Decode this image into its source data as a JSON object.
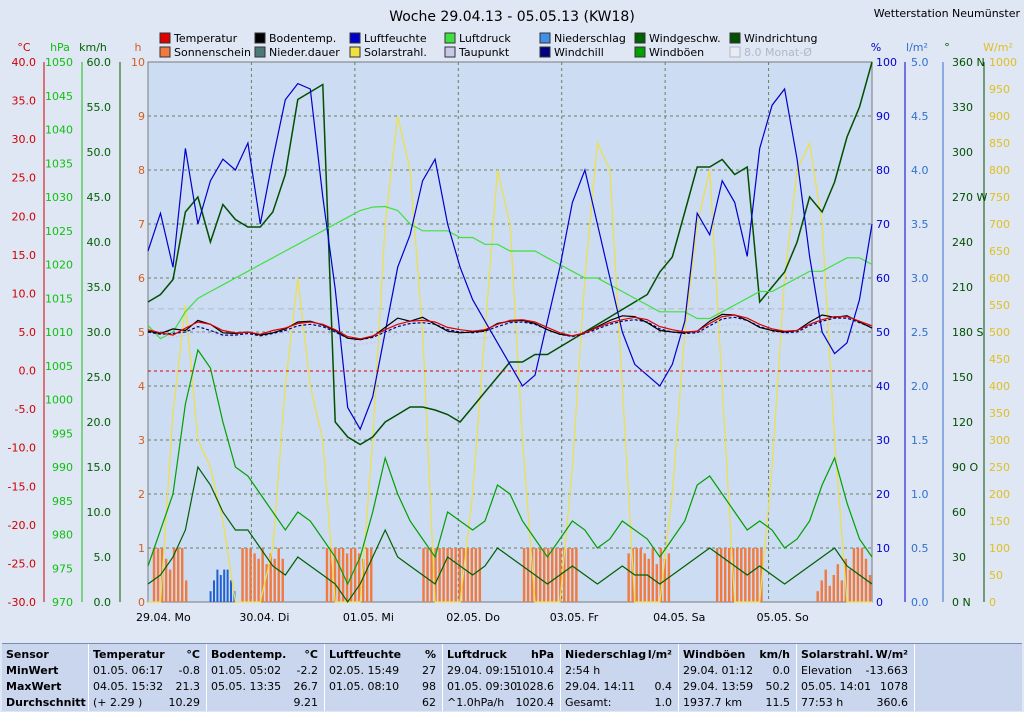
{
  "title": "Woche 29.04.13 - 05.05.13 (KW18)",
  "station": "Wetterstation Neumünster",
  "axis_units": {
    "temp": "°C",
    "hpa": "hPa",
    "kmh": "km/h",
    "h": "h",
    "pct": "%",
    "lm2": "l/m²",
    "deg": "°",
    "wm2": "W/m²"
  },
  "legend": [
    {
      "label": "Temperatur",
      "color": "#e00000"
    },
    {
      "label": "Sonnenschein",
      "color": "#f07a40"
    },
    {
      "label": "Bodentemp.",
      "color": "#000000"
    },
    {
      "label": "Nieder.dauer",
      "color": "#4a7a78"
    },
    {
      "label": "Luftfeuchte",
      "color": "#0000cc"
    },
    {
      "label": "Solarstrahl.",
      "color": "#f0e040"
    },
    {
      "label": "Luftdruck",
      "color": "#40e040"
    },
    {
      "label": "Taupunkt",
      "color": "#c8c8e8"
    },
    {
      "label": "Niederschlag",
      "color": "#4090e8"
    },
    {
      "label": "Windchill",
      "color": "#000080"
    },
    {
      "label": "Windgeschw.",
      "color": "#006000"
    },
    {
      "label": "Windböen",
      "color": "#00a000"
    },
    {
      "label": "Windrichtung",
      "color": "#005000"
    },
    {
      "label": "8.0 Monat-Ø",
      "color": "#b0b8c8"
    }
  ],
  "chart_data": {
    "type": "line",
    "x_ticks": [
      "29.04. Mo",
      "30.04. Di",
      "01.05. Mi",
      "02.05. Do",
      "03.05. Fr",
      "04.05. Sa",
      "05.05. So"
    ],
    "axes": {
      "temp_c": [
        -30,
        40
      ],
      "pressure_hpa": [
        970,
        1050
      ],
      "wind_kmh": [
        0,
        60
      ],
      "sunshine_h": [
        0,
        10
      ],
      "humidity_pct": [
        0,
        100
      ],
      "precip_lm2": [
        0,
        5
      ],
      "wind_dir_deg": [
        0,
        360
      ],
      "solar_wm2": [
        0,
        1000
      ]
    },
    "tick_labels": {
      "temp": [
        "40.0",
        "35.0",
        "30.0",
        "25.0",
        "20.0",
        "15.0",
        "10.0",
        "5.0",
        "0.0",
        "-5.0",
        "-10.0",
        "-15.0",
        "-20.0",
        "-25.0",
        "-30.0"
      ],
      "hpa": [
        "1050",
        "1045",
        "1040",
        "1035",
        "1030",
        "1025",
        "1020",
        "1015",
        "1010",
        "1005",
        "1000",
        "995",
        "990",
        "985",
        "980",
        "975",
        "970"
      ],
      "kmh": [
        "60.0",
        "55.0",
        "50.0",
        "45.0",
        "40.0",
        "35.0",
        "30.0",
        "25.0",
        "20.0",
        "15.0",
        "10.0",
        "5.0",
        "0.0"
      ],
      "h": [
        "10",
        "9",
        "8",
        "7",
        "6",
        "5",
        "4",
        "3",
        "2",
        "1",
        "0"
      ],
      "pct": [
        "100",
        "90",
        "80",
        "70",
        "60",
        "50",
        "40",
        "30",
        "20",
        "10",
        "0"
      ],
      "lm2": [
        "5.0",
        "4.5",
        "4.0",
        "3.5",
        "3.0",
        "2.5",
        "2.0",
        "1.5",
        "1.0",
        "0.5",
        "0.0"
      ],
      "deg": [
        "360 N",
        "330",
        "300",
        "270 W",
        "240",
        "210",
        "180 S",
        "150",
        "120",
        "90 O",
        "60",
        "30",
        "0 N"
      ],
      "wm2": [
        "1000",
        "950",
        "900",
        "850",
        "800",
        "750",
        "700",
        "650",
        "600",
        "550",
        "500",
        "450",
        "400",
        "350",
        "300",
        "250",
        "200",
        "150",
        "100",
        "50",
        "0"
      ]
    },
    "series": [
      {
        "name": "Temperatur",
        "color": "#e00000",
        "values": [
          5.3,
          4.9,
          4.6,
          5.5,
          6.3,
          6.0,
          5.2,
          4.9,
          5.0,
          4.7,
          5.2,
          5.5,
          6.1,
          6.3,
          6.0,
          5.3,
          4.4,
          4.1,
          4.5,
          5.3,
          6.0,
          6.4,
          6.5,
          6.3,
          5.6,
          5.3,
          5.1,
          5.3,
          6.0,
          6.5,
          6.6,
          6.3,
          5.6,
          4.9,
          4.5,
          4.9,
          5.6,
          6.2,
          6.6,
          6.9,
          6.6,
          5.7,
          5.3,
          5.0,
          5.1,
          6.1,
          7.0,
          7.2,
          6.8,
          6.0,
          5.4,
          5.1,
          5.2,
          6.0,
          6.6,
          7.0,
          7.0,
          6.4,
          5.8
        ]
      },
      {
        "name": "Bodentemp.",
        "color": "#000000",
        "values": [
          5.1,
          4.8,
          5.4,
          5.2,
          6.5,
          6.0,
          4.9,
          4.8,
          5.0,
          4.6,
          4.9,
          5.4,
          6.3,
          6.4,
          5.9,
          5.2,
          4.2,
          4.0,
          4.4,
          5.6,
          6.8,
          6.4,
          6.9,
          6.0,
          5.1,
          4.9,
          5.0,
          5.2,
          6.1,
          6.4,
          6.5,
          6.1,
          5.3,
          4.7,
          4.5,
          4.9,
          5.7,
          6.5,
          7.1,
          7.0,
          6.2,
          5.2,
          5.0,
          4.9,
          5.1,
          6.4,
          7.3,
          7.2,
          6.5,
          5.6,
          5.2,
          5.0,
          5.2,
          6.3,
          7.2,
          6.9,
          7.1,
          6.3,
          5.5
        ]
      },
      {
        "name": "Windchill",
        "color": "#000080",
        "values": [
          5.0,
          4.7,
          4.8,
          5.0,
          5.7,
          5.2,
          4.6,
          4.6,
          4.8,
          4.5,
          4.8,
          5.2,
          5.8,
          6.0,
          5.7,
          5.0,
          4.2,
          4.0,
          4.3,
          5.0,
          5.7,
          6.1,
          6.2,
          6.0,
          5.3,
          5.0,
          4.9,
          5.1,
          5.7,
          6.2,
          6.3,
          6.0,
          5.3,
          4.7,
          4.4,
          4.8,
          5.4,
          6.0,
          6.4,
          6.6,
          6.3,
          5.4,
          5.0,
          4.8,
          4.9,
          5.8,
          6.7,
          6.9,
          6.5,
          5.7,
          5.2,
          4.9,
          5.0,
          5.8,
          6.4,
          6.8,
          6.8,
          6.2,
          5.6
        ]
      },
      {
        "name": "Luftdruck",
        "color": "#40e040",
        "values": [
          1011,
          1009,
          1010,
          1013,
          1015,
          1016,
          1017,
          1018,
          1019,
          1020,
          1021,
          1022,
          1023,
          1024,
          1025,
          1026,
          1027,
          1028,
          1028.5,
          1028.6,
          1028,
          1026,
          1025,
          1025,
          1025,
          1024,
          1024,
          1023,
          1023,
          1022,
          1022,
          1022,
          1021,
          1020,
          1019,
          1018,
          1018,
          1017,
          1016,
          1015,
          1014,
          1013,
          1013,
          1013,
          1012,
          1012,
          1013,
          1014,
          1015,
          1016,
          1016,
          1017,
          1018,
          1019,
          1019,
          1020,
          1021,
          1021,
          1020
        ]
      },
      {
        "name": "Luftfeuchte",
        "color": "#0000cc",
        "values": [
          65,
          72,
          62,
          84,
          70,
          78,
          82,
          80,
          85,
          70,
          82,
          93,
          96,
          95,
          75,
          58,
          36,
          32,
          38,
          50,
          62,
          68,
          78,
          82,
          70,
          62,
          56,
          52,
          48,
          44,
          40,
          42,
          52,
          62,
          74,
          80,
          70,
          60,
          50,
          44,
          42,
          40,
          44,
          52,
          72,
          68,
          78,
          74,
          64,
          84,
          92,
          95,
          82,
          64,
          50,
          46,
          48,
          56,
          70
        ]
      },
      {
        "name": "Windgeschw.",
        "color": "#006000",
        "values": [
          2,
          3,
          5,
          8,
          15,
          13,
          10,
          8,
          8,
          6,
          4,
          3,
          5,
          4,
          3,
          2,
          0,
          2,
          5,
          8,
          5,
          4,
          3,
          2,
          5,
          4,
          3,
          4,
          6,
          5,
          4,
          3,
          2,
          3,
          4,
          3,
          2,
          3,
          4,
          3,
          3,
          2,
          3,
          4,
          5,
          6,
          5,
          4,
          3,
          4,
          3,
          2,
          3,
          4,
          5,
          6,
          4,
          3,
          2
        ]
      },
      {
        "name": "Windböen",
        "color": "#00a000",
        "values": [
          4,
          8,
          12,
          22,
          28,
          26,
          20,
          15,
          14,
          12,
          10,
          8,
          10,
          9,
          7,
          5,
          2,
          5,
          10,
          16,
          12,
          9,
          7,
          5,
          10,
          9,
          8,
          9,
          13,
          12,
          9,
          7,
          5,
          7,
          9,
          8,
          6,
          7,
          9,
          8,
          7,
          5,
          7,
          9,
          13,
          14,
          12,
          10,
          8,
          9,
          8,
          6,
          7,
          9,
          13,
          16,
          11,
          7,
          5
        ]
      },
      {
        "name": "Windrichtung",
        "color": "#005000",
        "values": [
          200,
          205,
          215,
          260,
          270,
          240,
          265,
          255,
          250,
          250,
          260,
          285,
          335,
          340,
          345,
          120,
          110,
          105,
          110,
          120,
          125,
          130,
          130,
          128,
          125,
          120,
          130,
          140,
          150,
          160,
          160,
          165,
          165,
          170,
          175,
          180,
          185,
          190,
          195,
          200,
          205,
          220,
          230,
          260,
          290,
          290,
          295,
          285,
          290,
          200,
          210,
          220,
          240,
          270,
          260,
          280,
          310,
          330,
          360
        ]
      },
      {
        "name": "Taupunkt",
        "color": "#c8c8e8",
        "values": [
          4.6,
          4.4,
          4.3,
          4.6,
          5.0,
          4.8,
          4.4,
          4.3,
          4.5,
          4.2,
          4.5,
          4.9,
          5.5,
          5.6,
          5.0,
          4.3,
          3.6,
          3.4,
          3.6,
          4.2,
          4.8,
          5.2,
          5.5,
          5.4,
          4.8,
          4.4,
          4.2,
          4.2,
          4.6,
          4.9,
          4.8,
          4.7,
          4.5,
          4.3,
          4.2,
          4.4,
          4.8,
          5.1,
          5.3,
          5.4,
          5.1,
          4.5,
          4.4,
          4.3,
          4.5,
          5.2,
          5.9,
          6.1,
          5.7,
          5.1,
          4.8,
          4.7,
          4.8,
          5.4,
          5.9,
          6.1,
          6.1,
          5.6,
          5.1
        ]
      },
      {
        "name": "Solarstrahl.",
        "color": "#f0e040",
        "values": [
          0,
          0,
          350,
          550,
          300,
          250,
          150,
          0,
          0,
          0,
          100,
          400,
          600,
          400,
          300,
          0,
          0,
          0,
          300,
          700,
          900,
          800,
          500,
          0,
          0,
          0,
          200,
          500,
          800,
          700,
          300,
          0,
          0,
          0,
          250,
          600,
          850,
          800,
          400,
          0,
          0,
          0,
          200,
          500,
          700,
          800,
          400,
          0,
          0,
          0,
          250,
          600,
          800,
          850,
          700,
          300,
          0,
          0,
          0
        ]
      }
    ],
    "sunshine_bars_h": [
      0,
      1,
      1,
      1,
      0.8,
      0.6,
      1,
      1,
      1,
      0.4,
      0,
      0,
      0,
      0,
      0,
      0,
      0,
      0,
      0,
      0,
      0,
      0,
      0,
      1,
      1,
      1,
      0.9,
      0.8,
      1,
      0.7,
      0.9,
      0.8,
      1,
      0.8,
      0,
      0,
      0,
      0,
      0,
      0,
      0,
      0,
      0,
      0,
      1,
      1,
      1,
      1,
      1,
      0.9,
      1,
      1,
      0.9,
      0.8,
      1,
      1,
      0,
      0,
      0,
      0,
      0,
      0,
      0,
      0,
      0,
      0,
      0,
      0,
      1,
      1,
      1,
      1,
      1,
      1,
      1,
      1,
      1,
      1,
      1,
      1,
      1,
      1,
      1,
      0,
      0,
      0,
      0,
      0,
      0,
      0,
      0,
      0,
      0,
      1,
      1,
      1,
      1,
      1,
      1,
      1,
      1,
      1,
      1,
      1,
      1,
      1,
      1,
      0,
      0,
      0,
      0,
      0,
      0,
      0,
      0,
      0,
      0,
      0,
      0,
      0.9,
      1,
      1,
      1,
      0.9,
      0.8,
      1,
      0.7,
      1,
      0.8,
      0.9,
      0,
      0,
      0,
      0,
      0,
      0,
      0,
      0,
      0,
      0,
      0,
      1,
      1,
      1,
      1,
      1,
      1,
      1,
      1,
      1,
      1,
      1,
      1,
      0,
      0,
      0,
      0,
      0,
      0,
      0,
      0,
      0,
      0,
      0,
      0,
      0,
      0.2,
      0.4,
      0.6,
      0.3,
      0.5,
      0.7,
      0.4,
      0.8,
      0.6,
      1,
      1,
      1,
      0.8,
      0.5
    ],
    "precip_bars_lm2": [
      0,
      0,
      0,
      0,
      0.1,
      0.2,
      0.3,
      0.25,
      0.3,
      0.3,
      0.2,
      0.1,
      0
    ]
  },
  "stats": {
    "headers": {
      "sensor": "Sensor",
      "temp": "Temperatur",
      "temp_u": "°C",
      "boden": "Bodentemp.",
      "boden_u": "°C",
      "feuchte": "Luftfeuchte",
      "feuchte_u": "%",
      "druck": "Luftdruck",
      "druck_u": "hPa",
      "nieder": "Niederschlag",
      "nieder_u": "l/m²",
      "wind": "Windböen",
      "wind_u": "km/h",
      "solar": "Solarstrahl.",
      "solar_u": "W/m²"
    },
    "row_labels": [
      "MinWert",
      "MaxWert",
      "Durchschnitt"
    ],
    "temp": [
      [
        "01.05.  06:17",
        "-0.8"
      ],
      [
        "04.05.  15:32",
        "21.3"
      ],
      [
        "(+ 2.29 )",
        "10.29"
      ]
    ],
    "boden": [
      [
        "01.05.  05:02",
        "-2.2"
      ],
      [
        "05.05.  13:35",
        "26.7"
      ],
      [
        "",
        "9.21"
      ]
    ],
    "feuchte": [
      [
        "02.05.  15:49",
        "27"
      ],
      [
        "01.05.  08:10",
        "98"
      ],
      [
        "",
        "62"
      ]
    ],
    "druck": [
      [
        "29.04.  09:15",
        "1010.4"
      ],
      [
        "01.05.  09:30",
        "1028.6"
      ],
      [
        "^1.0hPa/h",
        "1020.4"
      ]
    ],
    "nieder": [
      [
        "2:54 h",
        ""
      ],
      [
        "29.04.  14:11",
        "0.4"
      ],
      [
        "Gesamt:",
        "1.0"
      ]
    ],
    "wind": [
      [
        "29.04.  01:12",
        "0.0"
      ],
      [
        "29.04.  13:59",
        "50.2"
      ],
      [
        "1937.7 km",
        "11.5"
      ]
    ],
    "solar": [
      [
        "Elevation",
        "-13.663"
      ],
      [
        "05.05.  14:01",
        "1078"
      ],
      [
        "77:53 h",
        "360.6"
      ]
    ]
  }
}
